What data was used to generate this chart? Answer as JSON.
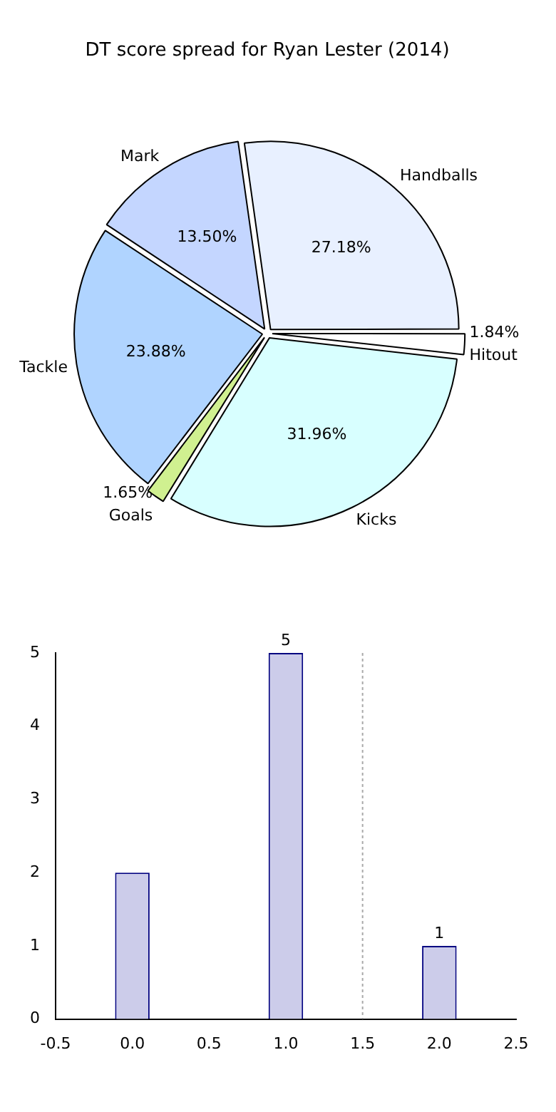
{
  "chart_data": [
    {
      "type": "pie",
      "title": "DT score spread for Ryan Lester (2014)",
      "categories": [
        "Handballs",
        "Hitout",
        "Kicks",
        "Goals",
        "Tackle",
        "Mark"
      ],
      "values": [
        27.18,
        1.84,
        31.96,
        1.65,
        23.88,
        13.5
      ],
      "colors": [
        "#e8f0ff",
        "#ffffff",
        "#d8ffff",
        "#d0f090",
        "#b0d4ff",
        "#c4d6ff"
      ],
      "value_labels": [
        "27.18%",
        "1.84%",
        "31.96%",
        "1.65%",
        "23.88%",
        "13.50%"
      ]
    },
    {
      "type": "bar",
      "x": [
        0,
        1,
        2
      ],
      "values": [
        2,
        5,
        1
      ],
      "color": "#ccccea",
      "value_labels": [
        null,
        "5",
        "1"
      ],
      "xlim": [
        -0.5,
        2.5
      ],
      "xticks": [
        {
          "value": -0.5,
          "label": "-0.5"
        },
        {
          "value": 0,
          "label": "0.0"
        },
        {
          "value": 0.5,
          "label": "0.5"
        },
        {
          "value": 1,
          "label": "1.0"
        },
        {
          "value": 1.5,
          "label": "1.5"
        },
        {
          "value": 2,
          "label": "2.0"
        },
        {
          "value": 2.5,
          "label": "2.5"
        }
      ],
      "ylim": [
        0,
        5
      ],
      "yticks": [
        0,
        1,
        2,
        3,
        4,
        5
      ],
      "ref_lines": [
        {
          "axis": "x",
          "value": 1.5,
          "color": "#aaaaaa",
          "line_style": "dotted"
        }
      ]
    }
  ]
}
